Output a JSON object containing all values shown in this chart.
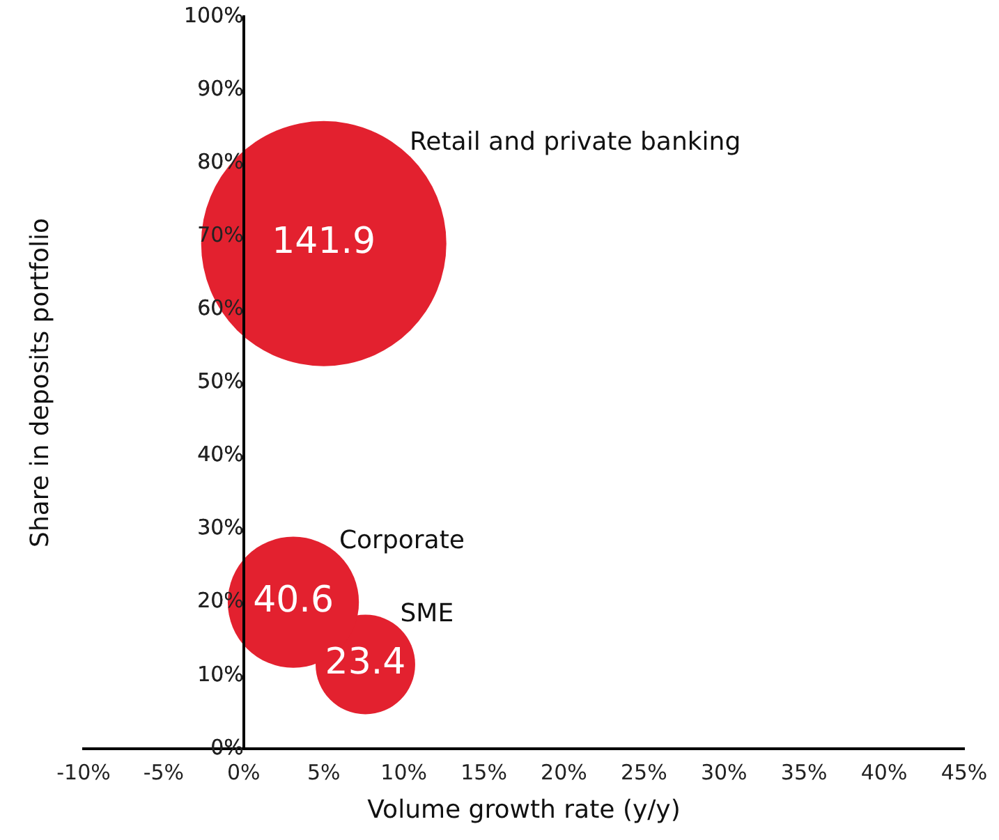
{
  "chart_data": {
    "type": "bubble",
    "xlabel": "Volume growth rate (y/y)",
    "ylabel": "Share in deposits portfolio",
    "xlim": [
      -10,
      45
    ],
    "xticks": [
      {
        "value": -10,
        "label": "-10%"
      },
      {
        "value": -5,
        "label": "-5%"
      },
      {
        "value": 0,
        "label": "0%"
      },
      {
        "value": 5,
        "label": "5%"
      },
      {
        "value": 10,
        "label": "10%"
      },
      {
        "value": 15,
        "label": "15%"
      },
      {
        "value": 20,
        "label": "20%"
      },
      {
        "value": 25,
        "label": "25%"
      },
      {
        "value": 30,
        "label": "30%"
      },
      {
        "value": 35,
        "label": "35%"
      },
      {
        "value": 40,
        "label": "40%"
      },
      {
        "value": 45,
        "label": "45%"
      }
    ],
    "ylim": [
      0,
      100
    ],
    "yticks": [
      {
        "value": 0,
        "label": "0%"
      },
      {
        "value": 10,
        "label": "10%"
      },
      {
        "value": 20,
        "label": "20%"
      },
      {
        "value": 30,
        "label": "30%"
      },
      {
        "value": 40,
        "label": "40%"
      },
      {
        "value": 50,
        "label": "50%"
      },
      {
        "value": 60,
        "label": "60%"
      },
      {
        "value": 70,
        "label": "70%"
      },
      {
        "value": 80,
        "label": "80%"
      },
      {
        "value": 90,
        "label": "90%"
      },
      {
        "value": 100,
        "label": "100%"
      }
    ],
    "grid": false,
    "legend": false,
    "series": [
      {
        "name": "Retail and private banking",
        "color": "#e3212f",
        "x": [
          5
        ],
        "values": [
          69
        ],
        "sizes": [
          141.9
        ],
        "value_labels": [
          "141.9"
        ]
      },
      {
        "name": "Corporate",
        "color": "#e3212f",
        "x": [
          3.1
        ],
        "values": [
          20
        ],
        "sizes": [
          40.6
        ],
        "value_labels": [
          "40.6"
        ]
      },
      {
        "name": "SME",
        "color": "#e3212f",
        "x": [
          7.6
        ],
        "values": [
          11.5
        ],
        "sizes": [
          23.4
        ],
        "value_labels": [
          "23.4"
        ]
      }
    ]
  }
}
